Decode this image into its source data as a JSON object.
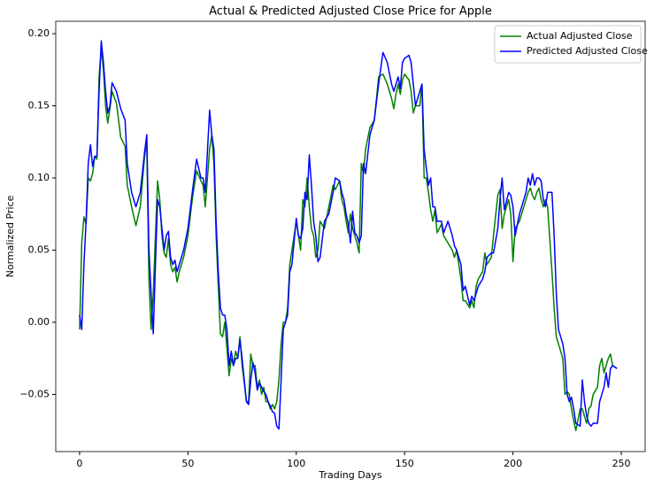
{
  "chart_data": {
    "type": "line",
    "title": "Actual & Predicted Adjusted Close Price for Apple",
    "xlabel": "Trading Days",
    "ylabel": "Normalized Price",
    "x": [
      0,
      1,
      2,
      3,
      4,
      5,
      6,
      7,
      8,
      9,
      10,
      11,
      12,
      13,
      14,
      15,
      17,
      19,
      21,
      22,
      24,
      26,
      28,
      30,
      31,
      32,
      33,
      34,
      35,
      36,
      37,
      38,
      39,
      40,
      41,
      42,
      43,
      44,
      45,
      46,
      48,
      50,
      52,
      54,
      56,
      57,
      58,
      60,
      61,
      62,
      63,
      64,
      65,
      66,
      67,
      68,
      69,
      70,
      71,
      72,
      73,
      74,
      75,
      76,
      77,
      78,
      79,
      80,
      81,
      82,
      83,
      84,
      85,
      86,
      87,
      88,
      89,
      90,
      91,
      92,
      93,
      94,
      95,
      96,
      97,
      98,
      100,
      101,
      102,
      103,
      104,
      105,
      106,
      107,
      108,
      109,
      110,
      111,
      113,
      115,
      117,
      118,
      120,
      121,
      122,
      123,
      124,
      125,
      126,
      127,
      128,
      129,
      130,
      131,
      132,
      134,
      136,
      138,
      140,
      142,
      144,
      145,
      146,
      147,
      148,
      149,
      150,
      152,
      153,
      154,
      155,
      157,
      158,
      159,
      160,
      161,
      162,
      163,
      164,
      165,
      167,
      168,
      170,
      172,
      173,
      174,
      176,
      177,
      178,
      180,
      181,
      182,
      183,
      184,
      186,
      187,
      188,
      190,
      191,
      193,
      194,
      195,
      196,
      198,
      199,
      200,
      201,
      203,
      206,
      207,
      208,
      209,
      210,
      211,
      212,
      213,
      214,
      215,
      216,
      218,
      219,
      220,
      221,
      222,
      223,
      224,
      225,
      226,
      227,
      228,
      229,
      231,
      232,
      233,
      234,
      235,
      236,
      237,
      239,
      240,
      241,
      242,
      243,
      244,
      245,
      246,
      248
    ],
    "series": [
      {
        "name": "Actual Adjusted Close",
        "color": "#008000",
        "values": [
          -0.005,
          0.055,
          0.073,
          0.068,
          0.1,
          0.098,
          0.103,
          0.115,
          0.113,
          0.17,
          0.19,
          0.175,
          0.15,
          0.138,
          0.148,
          0.16,
          0.152,
          0.128,
          0.122,
          0.095,
          0.08,
          0.067,
          0.08,
          0.115,
          0.125,
          0.03,
          -0.005,
          0.02,
          0.06,
          0.098,
          0.085,
          0.06,
          0.048,
          0.045,
          0.058,
          0.04,
          0.035,
          0.038,
          0.028,
          0.035,
          0.045,
          0.06,
          0.085,
          0.105,
          0.098,
          0.095,
          0.08,
          0.12,
          0.13,
          0.11,
          0.06,
          0.025,
          -0.008,
          -0.01,
          0.0,
          -0.018,
          -0.037,
          -0.025,
          -0.03,
          -0.02,
          -0.025,
          -0.01,
          -0.03,
          -0.042,
          -0.055,
          -0.055,
          -0.022,
          -0.03,
          -0.03,
          -0.045,
          -0.04,
          -0.05,
          -0.045,
          -0.055,
          -0.055,
          -0.06,
          -0.057,
          -0.06,
          -0.055,
          -0.04,
          -0.015,
          0.0,
          0.0,
          0.01,
          0.04,
          0.05,
          0.07,
          0.06,
          0.05,
          0.085,
          0.08,
          0.1,
          0.08,
          0.065,
          0.06,
          0.045,
          0.05,
          0.07,
          0.065,
          0.08,
          0.095,
          0.092,
          0.098,
          0.085,
          0.08,
          0.07,
          0.062,
          0.075,
          0.065,
          0.06,
          0.055,
          0.048,
          0.11,
          0.103,
          0.12,
          0.135,
          0.14,
          0.17,
          0.172,
          0.165,
          0.155,
          0.148,
          0.158,
          0.165,
          0.158,
          0.168,
          0.172,
          0.168,
          0.16,
          0.145,
          0.15,
          0.15,
          0.165,
          0.1,
          0.1,
          0.09,
          0.078,
          0.07,
          0.078,
          0.062,
          0.068,
          0.06,
          0.055,
          0.05,
          0.045,
          0.05,
          0.03,
          0.015,
          0.015,
          0.01,
          0.015,
          0.01,
          0.025,
          0.03,
          0.035,
          0.048,
          0.04,
          0.045,
          0.06,
          0.088,
          0.092,
          0.065,
          0.075,
          0.085,
          0.075,
          0.042,
          0.065,
          0.07,
          0.085,
          0.09,
          0.093,
          0.088,
          0.085,
          0.09,
          0.093,
          0.085,
          0.08,
          0.085,
          0.08,
          0.035,
          0.01,
          -0.01,
          -0.015,
          -0.02,
          -0.025,
          -0.05,
          -0.048,
          -0.05,
          -0.06,
          -0.068,
          -0.075,
          -0.06,
          -0.06,
          -0.065,
          -0.07,
          -0.06,
          -0.058,
          -0.05,
          -0.045,
          -0.03,
          -0.025,
          -0.035,
          -0.03,
          -0.025,
          -0.022,
          -0.03,
          -0.032
        ]
      },
      {
        "name": "Predicted Adjusted Close",
        "color": "#0000ff",
        "values": [
          0.005,
          -0.005,
          0.04,
          0.07,
          0.11,
          0.123,
          0.108,
          0.115,
          0.115,
          0.16,
          0.195,
          0.18,
          0.16,
          0.145,
          0.15,
          0.166,
          0.16,
          0.148,
          0.14,
          0.11,
          0.09,
          0.08,
          0.09,
          0.118,
          0.13,
          0.05,
          0.02,
          -0.008,
          0.04,
          0.085,
          0.08,
          0.065,
          0.05,
          0.06,
          0.063,
          0.045,
          0.04,
          0.043,
          0.035,
          0.04,
          0.05,
          0.065,
          0.09,
          0.113,
          0.1,
          0.1,
          0.09,
          0.147,
          0.13,
          0.12,
          0.07,
          0.035,
          0.01,
          0.005,
          0.005,
          -0.005,
          -0.03,
          -0.02,
          -0.03,
          -0.025,
          -0.025,
          -0.012,
          -0.025,
          -0.04,
          -0.055,
          -0.057,
          -0.04,
          -0.028,
          -0.035,
          -0.047,
          -0.042,
          -0.045,
          -0.048,
          -0.05,
          -0.055,
          -0.058,
          -0.062,
          -0.063,
          -0.072,
          -0.074,
          -0.04,
          -0.005,
          0.0,
          0.005,
          0.035,
          0.04,
          0.072,
          0.06,
          0.058,
          0.065,
          0.09,
          0.085,
          0.116,
          0.095,
          0.07,
          0.06,
          0.042,
          0.045,
          0.07,
          0.075,
          0.09,
          0.1,
          0.098,
          0.09,
          0.085,
          0.075,
          0.068,
          0.055,
          0.077,
          0.062,
          0.06,
          0.055,
          0.06,
          0.11,
          0.103,
          0.13,
          0.14,
          0.165,
          0.187,
          0.18,
          0.165,
          0.16,
          0.165,
          0.17,
          0.162,
          0.18,
          0.183,
          0.185,
          0.18,
          0.165,
          0.15,
          0.16,
          0.165,
          0.12,
          0.107,
          0.095,
          0.1,
          0.08,
          0.08,
          0.07,
          0.07,
          0.062,
          0.07,
          0.06,
          0.053,
          0.05,
          0.04,
          0.022,
          0.025,
          0.012,
          0.018,
          0.015,
          0.02,
          0.025,
          0.03,
          0.035,
          0.045,
          0.048,
          0.048,
          0.065,
          0.085,
          0.1,
          0.078,
          0.09,
          0.088,
          0.08,
          0.06,
          0.075,
          0.09,
          0.1,
          0.095,
          0.103,
          0.095,
          0.1,
          0.1,
          0.098,
          0.085,
          0.08,
          0.09,
          0.09,
          0.06,
          0.02,
          -0.005,
          -0.01,
          -0.015,
          -0.025,
          -0.05,
          -0.055,
          -0.052,
          -0.06,
          -0.07,
          -0.072,
          -0.04,
          -0.055,
          -0.065,
          -0.07,
          -0.072,
          -0.07,
          -0.07,
          -0.055,
          -0.05,
          -0.045,
          -0.035,
          -0.045,
          -0.032,
          -0.03,
          -0.032
        ]
      }
    ],
    "xlim": [
      -11,
      261
    ],
    "xticks": [
      0,
      50,
      100,
      150,
      200,
      250
    ],
    "ylim": [
      -0.0896,
      0.2086
    ],
    "yticks": [
      {
        "value": -0.05,
        "label": "−0.05"
      },
      {
        "value": 0,
        "label": "0.00"
      },
      {
        "value": 0.05,
        "label": "0.05"
      },
      {
        "value": 0.1,
        "label": "0.10"
      },
      {
        "value": 0.15,
        "label": "0.15"
      },
      {
        "value": 0.2,
        "label": "0.20"
      }
    ],
    "legend": "upper right",
    "grid": false
  }
}
